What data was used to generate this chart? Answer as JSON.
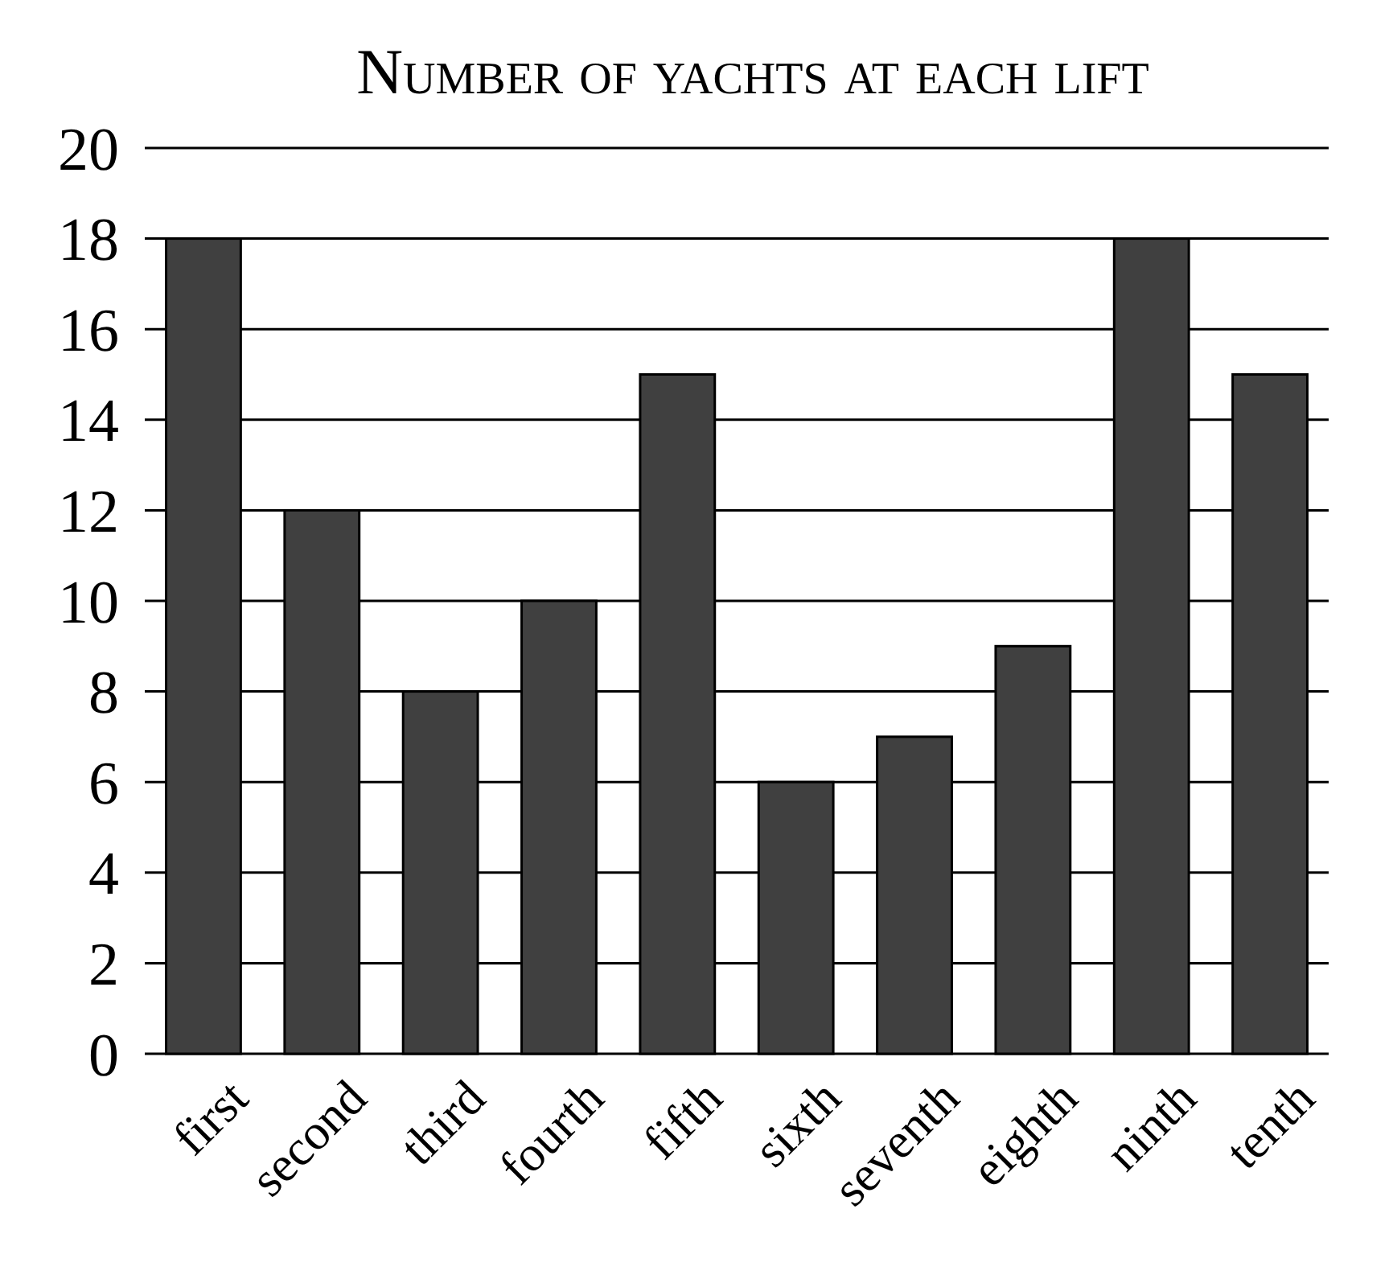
{
  "chart_data": {
    "type": "bar",
    "title": "Number of yachts at each lift",
    "categories": [
      "first",
      "second",
      "third",
      "fourth",
      "fifth",
      "sixth",
      "seventh",
      "eighth",
      "ninth",
      "tenth"
    ],
    "values": [
      18,
      12,
      8,
      10,
      15,
      6,
      7,
      9,
      18,
      15
    ],
    "color": "#404040",
    "ylim": [
      0,
      20
    ],
    "yticks": [
      0,
      2,
      4,
      6,
      8,
      10,
      12,
      14,
      16,
      18,
      20
    ],
    "grid": "y"
  }
}
